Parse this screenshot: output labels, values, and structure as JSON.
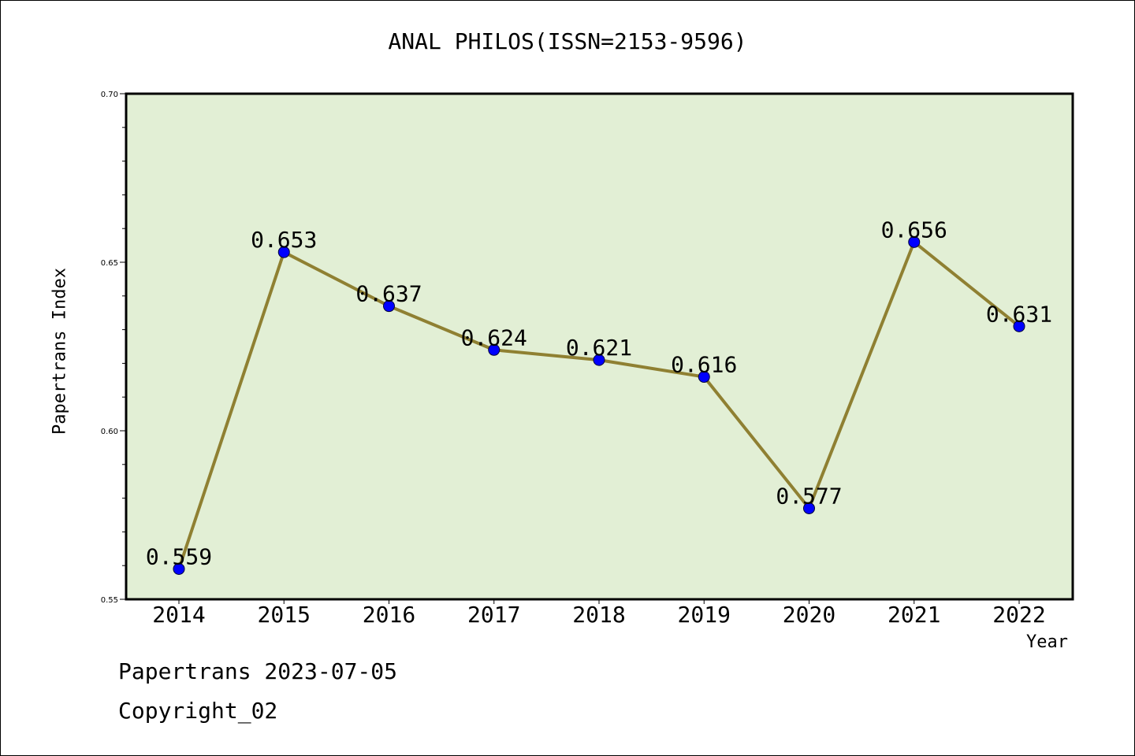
{
  "chart_data": {
    "type": "line",
    "title": "ANAL PHILOS(ISSN=2153-9596)",
    "xlabel": "Year",
    "ylabel": "Papertrans Index",
    "categories": [
      "2014",
      "2015",
      "2016",
      "2017",
      "2018",
      "2019",
      "2020",
      "2021",
      "2022"
    ],
    "values": [
      0.559,
      0.653,
      0.637,
      0.624,
      0.621,
      0.616,
      0.577,
      0.656,
      0.631
    ],
    "data_labels": [
      "0.559",
      "0.653",
      "0.637",
      "0.624",
      "0.621",
      "0.616",
      "0.577",
      "0.656",
      "0.631"
    ],
    "ylim": [
      0.55,
      0.7
    ],
    "yticks": [
      "0.55",
      "0.60",
      "0.65",
      "0.70"
    ],
    "grid": false,
    "colors": {
      "plot_bg": "#e2efd5",
      "line": "#8f8032",
      "marker": "#0000ff"
    }
  },
  "footer": {
    "line1": "Papertrans 2023-07-05",
    "line2": "Copyright_02"
  }
}
